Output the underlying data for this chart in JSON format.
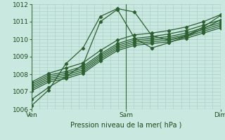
{
  "xlabel": "Pression niveau de la mer( hPa )",
  "bg_color": "#c8e8e0",
  "grid_color": "#a8ccc4",
  "line_color": "#2d6030",
  "ylim": [
    1006,
    1012
  ],
  "xlim": [
    0,
    48
  ],
  "xtick_positions": [
    0,
    24,
    48
  ],
  "xtick_labels": [
    "Ven",
    "Sam",
    "Dim"
  ],
  "ytick_positions": [
    1006,
    1007,
    1008,
    1009,
    1010,
    1011,
    1012
  ],
  "series": [
    [
      1006.2,
      1007.1,
      1008.6,
      1009.5,
      1011.3,
      1011.75,
      1011.55,
      1010.2,
      1009.95,
      1010.2,
      1010.7,
      1011.35
    ],
    [
      1006.55,
      1007.25,
      1007.85,
      1008.55,
      1011.0,
      1011.7,
      1010.05,
      1009.5,
      1009.8,
      1010.15,
      1010.6,
      1011.1
    ],
    [
      1007.05,
      1007.55,
      1007.75,
      1008.05,
      1008.75,
      1009.35,
      1009.65,
      1009.75,
      1009.85,
      1010.05,
      1010.35,
      1010.65
    ],
    [
      1007.15,
      1007.65,
      1007.85,
      1008.15,
      1008.85,
      1009.45,
      1009.75,
      1009.85,
      1009.95,
      1010.15,
      1010.45,
      1010.75
    ],
    [
      1007.25,
      1007.75,
      1007.95,
      1008.25,
      1008.95,
      1009.55,
      1009.85,
      1009.95,
      1010.05,
      1010.25,
      1010.55,
      1010.85
    ],
    [
      1007.35,
      1007.85,
      1008.05,
      1008.35,
      1009.05,
      1009.65,
      1009.95,
      1010.05,
      1010.15,
      1010.35,
      1010.65,
      1010.95
    ],
    [
      1007.45,
      1007.95,
      1008.15,
      1008.45,
      1009.15,
      1009.75,
      1010.05,
      1010.15,
      1010.3,
      1010.5,
      1010.8,
      1011.1
    ],
    [
      1007.55,
      1008.05,
      1008.35,
      1008.65,
      1009.35,
      1009.95,
      1010.25,
      1010.35,
      1010.5,
      1010.7,
      1011.0,
      1011.4
    ]
  ],
  "marker": "D",
  "markersize": 2.2,
  "linewidth": 0.9
}
